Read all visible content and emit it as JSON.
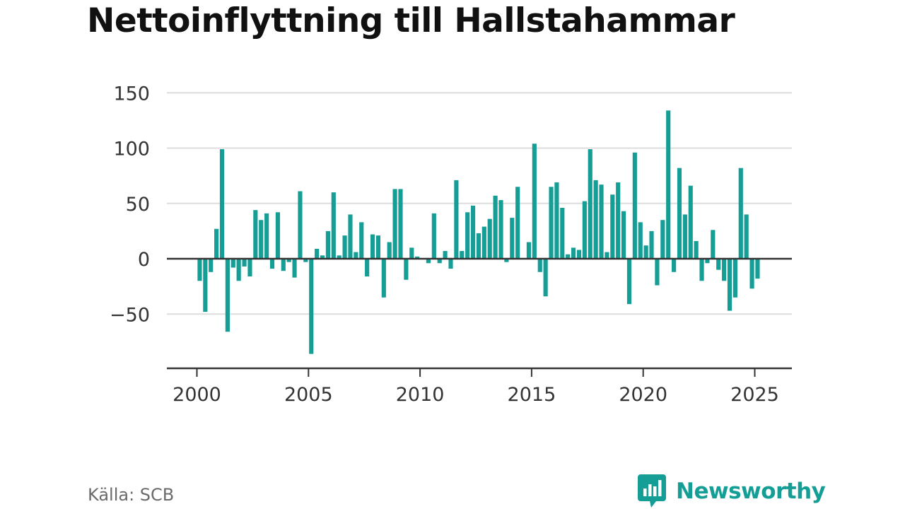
{
  "source": "Källa: SCB",
  "brand": {
    "name": "Newsworthy",
    "color": "#149e96"
  },
  "colors": {
    "bar": "#149e96",
    "grid": "#dddddd",
    "axis": "#333333"
  },
  "chart_data": {
    "type": "bar",
    "title": "Nettoinflyttning till Hallstahammar",
    "xlabel": "",
    "ylabel": "",
    "grid": true,
    "legend": "none",
    "ylim": [
      -90,
      150
    ],
    "yticks": [
      150,
      100,
      50,
      0,
      -50
    ],
    "ytick_labels": [
      "150",
      "100",
      "50",
      "0",
      "−50"
    ],
    "xlim": [
      1999.6,
      2026.5
    ],
    "xticks": [
      2000,
      2005,
      2010,
      2015,
      2020,
      2025
    ],
    "xtick_labels": [
      "2000",
      "2005",
      "2010",
      "2015",
      "2020",
      "2025"
    ],
    "start_year": 2000,
    "periods_per_year": 4,
    "values": [
      -20,
      -48,
      -12,
      27,
      99,
      -66,
      -8,
      -20,
      -7,
      -16,
      44,
      35,
      41,
      -9,
      42,
      -11,
      -3,
      -17,
      61,
      -3,
      -86,
      9,
      3,
      25,
      60,
      3,
      21,
      40,
      6,
      33,
      -16,
      22,
      21,
      -35,
      15,
      63,
      63,
      -19,
      10,
      2,
      0,
      -4,
      41,
      -4,
      7,
      -9,
      71,
      7,
      42,
      48,
      23,
      29,
      36,
      57,
      53,
      -3,
      37,
      65,
      0,
      15,
      104,
      -12,
      -34,
      65,
      69,
      46,
      4,
      10,
      8,
      52,
      99,
      71,
      67,
      6,
      58,
      69,
      43,
      -41,
      96,
      33,
      12,
      25,
      -24,
      35,
      134,
      -12,
      82,
      40,
      66,
      16,
      -20,
      -4,
      26,
      -10,
      -20,
      -47,
      -35,
      82,
      40,
      -27,
      -18
    ]
  }
}
